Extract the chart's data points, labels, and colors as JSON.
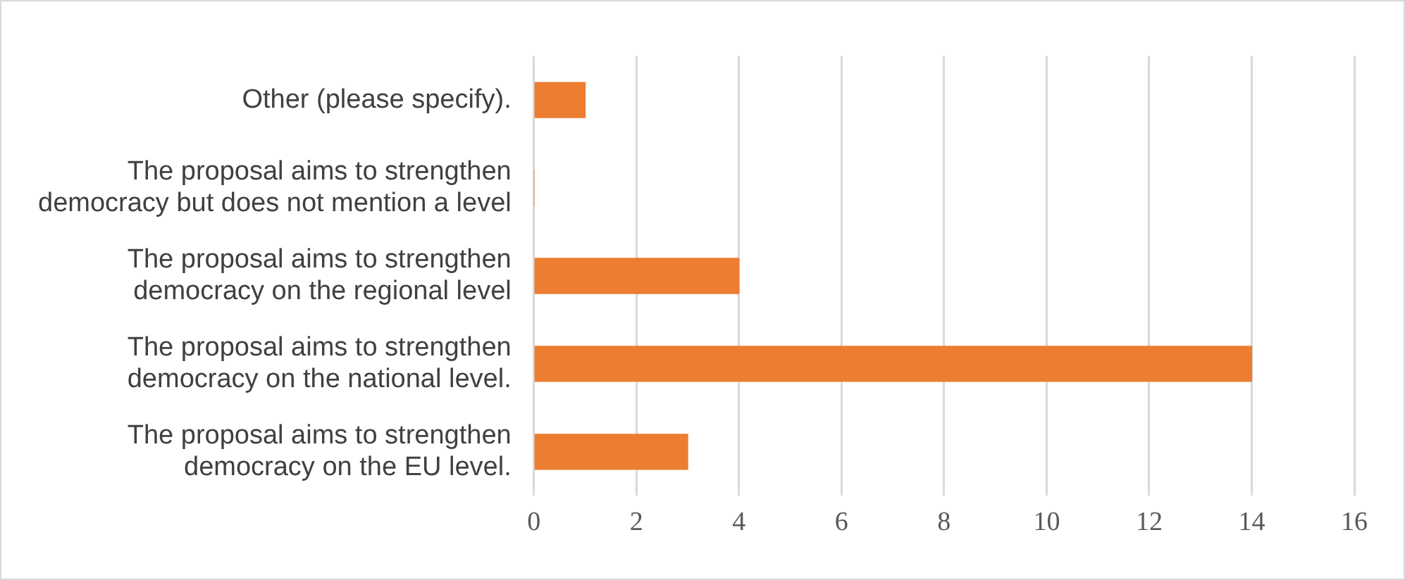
{
  "chart_data": {
    "type": "bar",
    "orientation": "horizontal",
    "categories": [
      "Other (please specify).",
      "The proposal aims to strengthen democracy but does not mention a level",
      "The proposal aims to strengthen democracy on the regional level",
      "The proposal aims to strengthen democracy on the national level.",
      "The proposal aims to strengthen democracy on the EU level."
    ],
    "values": [
      1,
      0,
      4,
      14,
      3
    ],
    "color": "#ed7d31",
    "xlim": [
      0,
      16
    ],
    "xticks": [
      0,
      2,
      4,
      6,
      8,
      10,
      12,
      14,
      16
    ],
    "grid": "x",
    "legend": false
  }
}
